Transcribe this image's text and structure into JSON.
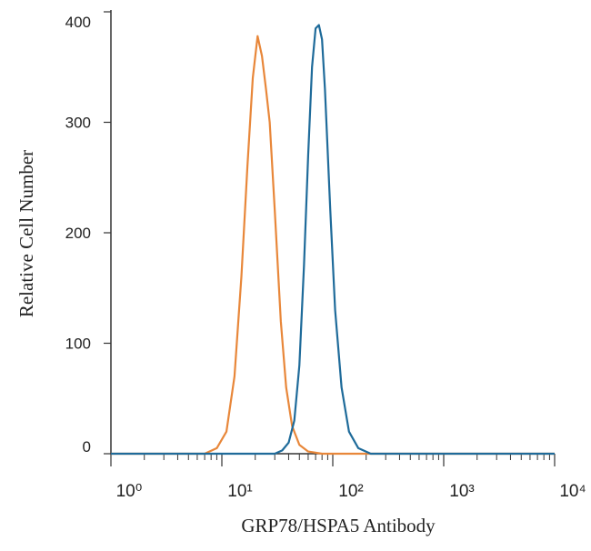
{
  "chart_data": {
    "type": "line",
    "xlabel": "GRP78/HSPA5 Antibody",
    "ylabel": "Relative Cell Number",
    "xscale": "log",
    "xlim": [
      1,
      10000
    ],
    "xticks": [
      {
        "value": 1,
        "label": "10⁰"
      },
      {
        "value": 10,
        "label": "10¹"
      },
      {
        "value": 100,
        "label": "10²"
      },
      {
        "value": 1000,
        "label": "10³"
      },
      {
        "value": 10000,
        "label": "10⁴"
      }
    ],
    "ylim": [
      0,
      400
    ],
    "yticks": [
      0,
      100,
      200,
      300,
      400
    ],
    "series": [
      {
        "color": "#e8873a",
        "x": [
          1,
          7,
          9,
          11,
          13,
          15,
          17,
          19,
          21,
          23,
          25,
          27,
          30,
          34,
          38,
          43,
          50,
          60,
          80,
          10000
        ],
        "values": [
          0,
          0,
          5,
          20,
          70,
          160,
          260,
          340,
          378,
          360,
          330,
          300,
          220,
          120,
          60,
          25,
          8,
          2,
          0,
          0
        ]
      },
      {
        "color": "#1f6b9a",
        "x": [
          1,
          30,
          35,
          40,
          45,
          50,
          55,
          60,
          65,
          70,
          75,
          80,
          85,
          95,
          105,
          120,
          140,
          170,
          220,
          10000
        ],
        "values": [
          0,
          0,
          3,
          10,
          30,
          80,
          170,
          270,
          350,
          385,
          388,
          375,
          330,
          220,
          130,
          60,
          20,
          5,
          0,
          0
        ]
      }
    ]
  }
}
